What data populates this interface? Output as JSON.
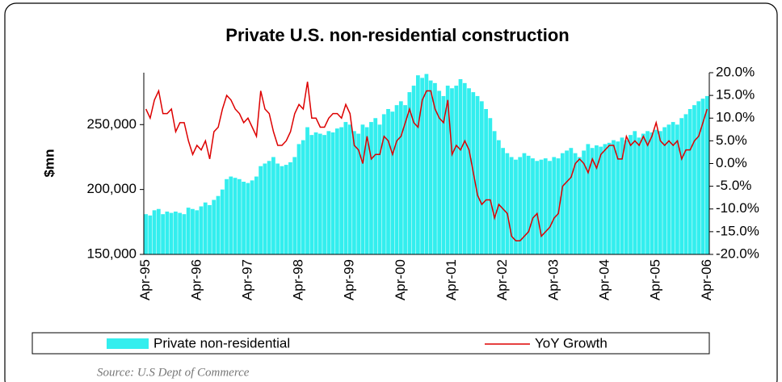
{
  "chart_data": {
    "type": "bar",
    "title": "Private U.S. non-residential construction",
    "y_label": "$mn",
    "source": "Source:  U.S Dept of Commerce",
    "categories": [
      "Apr-95",
      null,
      null,
      null,
      null,
      null,
      null,
      null,
      null,
      null,
      null,
      null,
      "Apr-96",
      null,
      null,
      null,
      null,
      null,
      null,
      null,
      null,
      null,
      null,
      null,
      "Apr-97",
      null,
      null,
      null,
      null,
      null,
      null,
      null,
      null,
      null,
      null,
      null,
      "Apr-98",
      null,
      null,
      null,
      null,
      null,
      null,
      null,
      null,
      null,
      null,
      null,
      "Apr-99",
      null,
      null,
      null,
      null,
      null,
      null,
      null,
      null,
      null,
      null,
      null,
      "Apr-00",
      null,
      null,
      null,
      null,
      null,
      null,
      null,
      null,
      null,
      null,
      null,
      "Apr-01",
      null,
      null,
      null,
      null,
      null,
      null,
      null,
      null,
      null,
      null,
      null,
      "Apr-02",
      null,
      null,
      null,
      null,
      null,
      null,
      null,
      null,
      null,
      null,
      null,
      "Apr-03",
      null,
      null,
      null,
      null,
      null,
      null,
      null,
      null,
      null,
      null,
      null,
      "Apr-04",
      null,
      null,
      null,
      null,
      null,
      null,
      null,
      null,
      null,
      null,
      null,
      "Apr-05",
      null,
      null,
      null,
      null,
      null,
      null,
      null,
      null,
      null,
      null,
      null,
      "Apr-06"
    ],
    "series": [
      {
        "name": "Private non-residential",
        "color": "#33eeee",
        "values": [
          181000,
          180000,
          184000,
          185000,
          181000,
          183000,
          182000,
          183000,
          182000,
          181000,
          186000,
          185000,
          184000,
          187000,
          190000,
          188000,
          192000,
          195000,
          200000,
          208000,
          210000,
          209000,
          208000,
          206000,
          205000,
          207000,
          210000,
          218000,
          220000,
          222000,
          225000,
          220000,
          218000,
          219000,
          221000,
          225000,
          235000,
          238000,
          248000,
          242000,
          244000,
          243000,
          242000,
          245000,
          244000,
          247000,
          248000,
          252000,
          250000,
          245000,
          243000,
          250000,
          248000,
          252000,
          255000,
          250000,
          258000,
          262000,
          260000,
          265000,
          268000,
          265000,
          275000,
          280000,
          288000,
          286000,
          289000,
          284000,
          282000,
          276000,
          272000,
          280000,
          278000,
          280000,
          285000,
          282000,
          278000,
          275000,
          272000,
          268000,
          262000,
          255000,
          245000,
          238000,
          232000,
          228000,
          225000,
          223000,
          225000,
          228000,
          226000,
          224000,
          222000,
          223000,
          224000,
          222000,
          225000,
          224000,
          228000,
          230000,
          232000,
          228000,
          225000,
          230000,
          235000,
          232000,
          234000,
          233000,
          235000,
          236000,
          238000,
          237000,
          240000,
          238000,
          242000,
          245000,
          240000,
          243000,
          245000,
          244000,
          246000,
          245000,
          248000,
          250000,
          252000,
          250000,
          255000,
          258000,
          262000,
          265000,
          268000,
          270000,
          272000
        ]
      },
      {
        "name": "YoY Growth",
        "color": "#dd0000",
        "axis": "y2",
        "values": [
          12,
          10,
          14,
          16,
          11,
          11,
          12,
          7,
          9,
          9,
          5,
          2,
          4,
          3,
          5,
          1,
          7,
          8,
          12,
          15,
          14,
          12,
          11,
          9,
          10,
          8,
          6,
          16,
          12,
          11,
          7,
          4,
          4,
          5,
          7,
          11,
          13,
          12,
          18,
          10,
          10,
          8,
          8,
          10,
          11,
          11,
          10,
          13,
          11,
          4,
          3,
          0,
          6,
          1,
          2,
          2,
          6,
          5,
          2,
          5,
          6,
          9,
          12,
          9,
          8,
          14,
          16,
          16,
          12,
          10,
          9,
          14,
          2,
          4,
          3,
          5,
          3,
          -2,
          -7,
          -9,
          -8,
          -8,
          -12,
          -9,
          -10,
          -11,
          -16,
          -17,
          -17,
          -16,
          -15,
          -12,
          -11,
          -16,
          -15,
          -14,
          -12,
          -11,
          -5,
          -4,
          -3,
          0,
          1,
          0,
          -2,
          1,
          -1,
          2,
          3,
          4,
          4,
          1,
          1,
          6,
          4,
          5,
          4,
          6,
          4,
          6,
          9,
          5,
          4,
          5,
          4,
          5,
          1,
          3,
          3,
          5,
          6,
          9,
          12
        ]
      }
    ],
    "ylim": [
      150000,
      290000
    ],
    "yticks": [
      {
        "value": 150000,
        "label": "150,000"
      },
      {
        "value": 200000,
        "label": "200,000"
      },
      {
        "value": 250000,
        "label": "250,000"
      }
    ],
    "y2lim": [
      -20,
      20
    ],
    "y2ticks": [
      {
        "value": -20,
        "label": "-20.0%"
      },
      {
        "value": -15,
        "label": "-15.0%"
      },
      {
        "value": -10,
        "label": "-10.0%"
      },
      {
        "value": -5,
        "label": "-5.0%"
      },
      {
        "value": 0,
        "label": "0.0%"
      },
      {
        "value": 5,
        "label": "5.0%"
      },
      {
        "value": 10,
        "label": "10.0%"
      },
      {
        "value": 15,
        "label": "15.0%"
      },
      {
        "value": 20,
        "label": "20.0%"
      }
    ],
    "legend": "bottom"
  }
}
